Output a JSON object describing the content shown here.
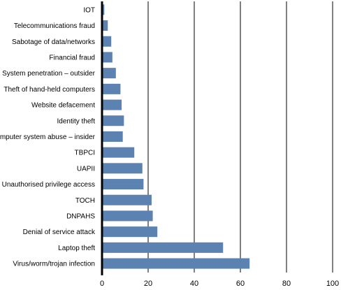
{
  "chart_data": {
    "type": "bar",
    "orientation": "horizontal",
    "title": "",
    "xlabel": "",
    "ylabel": "",
    "categories": [
      "IOT",
      "Telecommunications fraud",
      "Sabotage of data/networks",
      "Financial fraud",
      "System penetration – outsider",
      "Theft of hand-held computers",
      "Website defacement",
      "Identity theft",
      "Computer system abuse – insider",
      "TBPCI",
      "UAPII",
      "Unauthorised privilege access",
      "TOCH",
      "DNPAHS",
      "Denial of service attack",
      "Laptop theft",
      "Virus/worm/trojan infection"
    ],
    "values": [
      1,
      2.5,
      4,
      4.5,
      6,
      8,
      8.5,
      9.5,
      9,
      14,
      17.5,
      18,
      21.5,
      22,
      24,
      52.5,
      64
    ],
    "xlim": [
      0,
      100
    ],
    "xticks": [
      "0",
      "20",
      "40",
      "60",
      "80",
      "100"
    ],
    "xtick_values": [
      0,
      20,
      40,
      60,
      80,
      100
    ],
    "grid": "vertical",
    "bar_color": "#5b82b0"
  }
}
